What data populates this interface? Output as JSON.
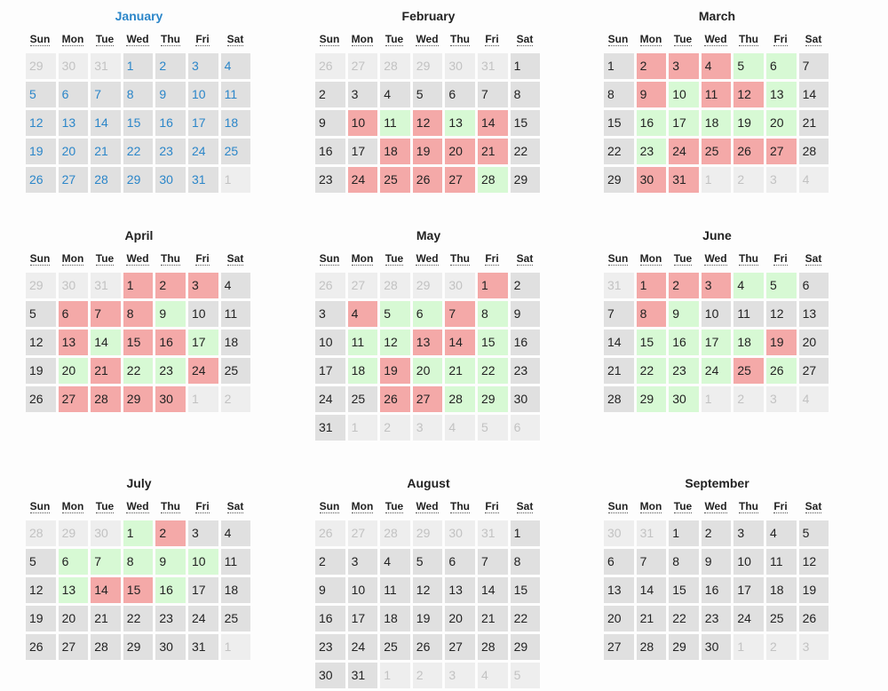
{
  "weekdays": [
    "Sun",
    "Mon",
    "Tue",
    "Wed",
    "Thu",
    "Fri",
    "Sat"
  ],
  "colors": {
    "busy": "#f4a9a8",
    "available": "#d7f9d4",
    "default": "#e0e0e0",
    "other_month": "#eeeeee",
    "selected_text": "#2b86c9"
  },
  "months": [
    {
      "name": "January",
      "selected": true,
      "weeks": [
        [
          "o:29",
          "o:30",
          "o:31",
          "1",
          "2",
          "3",
          "4"
        ],
        [
          "5",
          "6",
          "7",
          "8",
          "9",
          "10",
          "11"
        ],
        [
          "12",
          "13",
          "14",
          "15",
          "16",
          "17",
          "18"
        ],
        [
          "19",
          "20",
          "21",
          "22",
          "23",
          "24",
          "25"
        ],
        [
          "26",
          "27",
          "28",
          "29",
          "30",
          "31",
          "o:1"
        ]
      ]
    },
    {
      "name": "February",
      "weeks": [
        [
          "o:26",
          "o:27",
          "o:28",
          "o:29",
          "o:30",
          "o:31",
          "1"
        ],
        [
          "2",
          "3",
          "4",
          "5",
          "6",
          "7",
          "8"
        ],
        [
          "9",
          "r:10",
          "g:11",
          "r:12",
          "g:13",
          "r:14",
          "15"
        ],
        [
          "16",
          "17",
          "r:18",
          "r:19",
          "r:20",
          "r:21",
          "22"
        ],
        [
          "23",
          "r:24",
          "r:25",
          "r:26",
          "r:27",
          "g:28",
          "29"
        ]
      ]
    },
    {
      "name": "March",
      "weeks": [
        [
          "1",
          "r:2",
          "r:3",
          "r:4",
          "g:5",
          "g:6",
          "7"
        ],
        [
          "8",
          "r:9",
          "g:10",
          "r:11",
          "r:12",
          "g:13",
          "14"
        ],
        [
          "15",
          "g:16",
          "g:17",
          "g:18",
          "g:19",
          "g:20",
          "21"
        ],
        [
          "22",
          "g:23",
          "r:24",
          "r:25",
          "r:26",
          "r:27",
          "28"
        ],
        [
          "29",
          "r:30",
          "r:31",
          "o:1",
          "o:2",
          "o:3",
          "o:4"
        ]
      ]
    },
    {
      "name": "April",
      "weeks": [
        [
          "o:29",
          "o:30",
          "o:31",
          "r:1",
          "r:2",
          "r:3",
          "4"
        ],
        [
          "5",
          "r:6",
          "r:7",
          "r:8",
          "g:9",
          "10",
          "11"
        ],
        [
          "12",
          "r:13",
          "g:14",
          "r:15",
          "r:16",
          "g:17",
          "18"
        ],
        [
          "19",
          "g:20",
          "r:21",
          "g:22",
          "g:23",
          "r:24",
          "25"
        ],
        [
          "26",
          "r:27",
          "r:28",
          "r:29",
          "r:30",
          "o:1",
          "o:2"
        ]
      ]
    },
    {
      "name": "May",
      "weeks": [
        [
          "o:26",
          "o:27",
          "o:28",
          "o:29",
          "o:30",
          "r:1",
          "2"
        ],
        [
          "3",
          "r:4",
          "g:5",
          "g:6",
          "r:7",
          "g:8",
          "9"
        ],
        [
          "10",
          "g:11",
          "g:12",
          "r:13",
          "r:14",
          "g:15",
          "16"
        ],
        [
          "17",
          "g:18",
          "r:19",
          "g:20",
          "g:21",
          "g:22",
          "23"
        ],
        [
          "24",
          "25",
          "r:26",
          "r:27",
          "g:28",
          "g:29",
          "30"
        ],
        [
          "31",
          "o:1",
          "o:2",
          "o:3",
          "o:4",
          "o:5",
          "o:6"
        ]
      ]
    },
    {
      "name": "June",
      "weeks": [
        [
          "o:31",
          "r:1",
          "r:2",
          "r:3",
          "g:4",
          "g:5",
          "6"
        ],
        [
          "7",
          "r:8",
          "g:9",
          "10",
          "11",
          "12",
          "13"
        ],
        [
          "14",
          "g:15",
          "g:16",
          "g:17",
          "g:18",
          "r:19",
          "20"
        ],
        [
          "21",
          "g:22",
          "g:23",
          "g:24",
          "r:25",
          "g:26",
          "27"
        ],
        [
          "28",
          "g:29",
          "g:30",
          "o:1",
          "o:2",
          "o:3",
          "o:4"
        ]
      ]
    },
    {
      "name": "July",
      "weeks": [
        [
          "o:28",
          "o:29",
          "o:30",
          "g:1",
          "r:2",
          "3",
          "4"
        ],
        [
          "5",
          "g:6",
          "g:7",
          "g:8",
          "g:9",
          "g:10",
          "11"
        ],
        [
          "12",
          "g:13",
          "r:14",
          "r:15",
          "g:16",
          "17",
          "18"
        ],
        [
          "19",
          "20",
          "21",
          "22",
          "23",
          "24",
          "25"
        ],
        [
          "26",
          "27",
          "28",
          "29",
          "30",
          "31",
          "o:1"
        ]
      ]
    },
    {
      "name": "August",
      "weeks": [
        [
          "o:26",
          "o:27",
          "o:28",
          "o:29",
          "o:30",
          "o:31",
          "1"
        ],
        [
          "2",
          "3",
          "4",
          "5",
          "6",
          "7",
          "8"
        ],
        [
          "9",
          "10",
          "11",
          "12",
          "13",
          "14",
          "15"
        ],
        [
          "16",
          "17",
          "18",
          "19",
          "20",
          "21",
          "22"
        ],
        [
          "23",
          "24",
          "25",
          "26",
          "27",
          "28",
          "29"
        ],
        [
          "30",
          "31",
          "o:1",
          "o:2",
          "o:3",
          "o:4",
          "o:5"
        ]
      ]
    },
    {
      "name": "September",
      "weeks": [
        [
          "o:30",
          "o:31",
          "1",
          "2",
          "3",
          "4",
          "5"
        ],
        [
          "6",
          "7",
          "8",
          "9",
          "10",
          "11",
          "12"
        ],
        [
          "13",
          "14",
          "15",
          "16",
          "17",
          "18",
          "19"
        ],
        [
          "20",
          "21",
          "22",
          "23",
          "24",
          "25",
          "26"
        ],
        [
          "27",
          "28",
          "29",
          "30",
          "o:1",
          "o:2",
          "o:3"
        ]
      ]
    }
  ]
}
